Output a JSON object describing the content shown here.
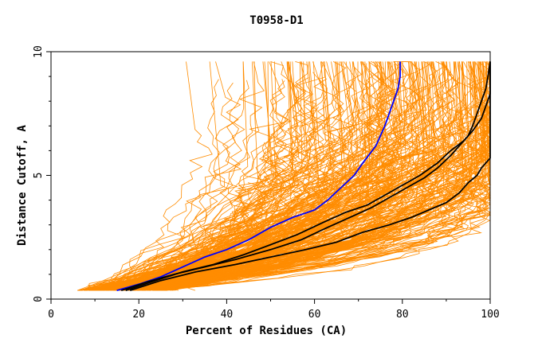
{
  "chart_data": {
    "type": "line",
    "title": "T0958-D1",
    "xlabel": "Percent of Residues (CA)",
    "ylabel": "Distance Cutoff, A",
    "xlim": [
      0,
      100
    ],
    "ylim": [
      0,
      10
    ],
    "x_ticks": [
      "0",
      "20",
      "40",
      "60",
      "80",
      "100"
    ],
    "y_ticks": [
      "0",
      "5",
      "10"
    ],
    "grid": false,
    "legend": "none",
    "colors": {
      "background_curves": "#ff8c00",
      "highlight_blue": "#0000ff",
      "highlight_black": "#000000",
      "frame": "#000000"
    },
    "series": [
      {
        "color": "#0000ff",
        "points": [
          [
            15,
            0.35
          ],
          [
            20,
            0.6
          ],
          [
            25,
            0.9
          ],
          [
            30,
            1.3
          ],
          [
            35,
            1.7
          ],
          [
            40,
            2.0
          ],
          [
            45,
            2.4
          ],
          [
            50,
            2.9
          ],
          [
            55,
            3.3
          ],
          [
            60,
            3.6
          ],
          [
            63,
            4.0
          ],
          [
            66,
            4.5
          ],
          [
            69,
            5.0
          ],
          [
            71,
            5.5
          ],
          [
            74,
            6.2
          ],
          [
            76,
            7.0
          ],
          [
            77,
            7.5
          ],
          [
            78,
            8.0
          ],
          [
            79,
            8.5
          ],
          [
            79.5,
            9.0
          ],
          [
            79.5,
            9.6
          ]
        ]
      },
      {
        "color": "#000000",
        "points": [
          [
            16,
            0.35
          ],
          [
            22,
            0.7
          ],
          [
            28,
            1.0
          ],
          [
            35,
            1.3
          ],
          [
            42,
            1.6
          ],
          [
            50,
            2.0
          ],
          [
            57,
            2.4
          ],
          [
            63,
            2.9
          ],
          [
            68,
            3.3
          ],
          [
            73,
            3.7
          ],
          [
            77,
            4.1
          ],
          [
            81,
            4.5
          ],
          [
            85,
            4.9
          ],
          [
            88,
            5.3
          ],
          [
            91,
            5.8
          ],
          [
            93,
            6.2
          ],
          [
            95,
            6.6
          ],
          [
            96,
            7.0
          ],
          [
            97,
            7.5
          ],
          [
            98,
            8.0
          ],
          [
            99,
            8.5
          ],
          [
            99.5,
            9.0
          ],
          [
            100,
            9.6
          ]
        ]
      },
      {
        "color": "#000000",
        "points": [
          [
            17,
            0.35
          ],
          [
            23,
            0.7
          ],
          [
            30,
            1.1
          ],
          [
            37,
            1.4
          ],
          [
            44,
            1.8
          ],
          [
            50,
            2.2
          ],
          [
            56,
            2.6
          ],
          [
            62,
            3.1
          ],
          [
            67,
            3.5
          ],
          [
            72,
            3.8
          ],
          [
            76,
            4.2
          ],
          [
            80,
            4.6
          ],
          [
            84,
            5.0
          ],
          [
            88,
            5.5
          ],
          [
            91,
            6.0
          ],
          [
            94,
            6.4
          ],
          [
            96,
            6.8
          ],
          [
            98,
            7.3
          ],
          [
            99,
            7.8
          ],
          [
            100,
            8.3
          ],
          [
            100,
            9.6
          ]
        ]
      },
      {
        "color": "#000000",
        "points": [
          [
            18,
            0.35
          ],
          [
            25,
            0.75
          ],
          [
            33,
            1.1
          ],
          [
            42,
            1.4
          ],
          [
            50,
            1.7
          ],
          [
            58,
            2.0
          ],
          [
            65,
            2.3
          ],
          [
            71,
            2.7
          ],
          [
            77,
            3.0
          ],
          [
            82,
            3.3
          ],
          [
            86,
            3.6
          ],
          [
            90,
            3.9
          ],
          [
            93,
            4.3
          ],
          [
            95,
            4.7
          ],
          [
            97,
            5.0
          ],
          [
            98,
            5.3
          ],
          [
            99,
            5.5
          ],
          [
            100,
            5.7
          ],
          [
            100,
            9.6
          ]
        ]
      }
    ],
    "background_curve_count": 300
  }
}
